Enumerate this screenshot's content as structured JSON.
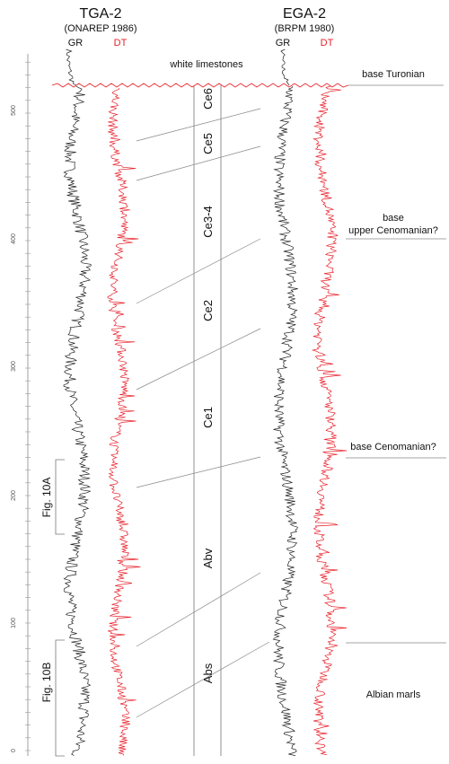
{
  "wells": [
    {
      "name": "TGA-2",
      "source": "(ONAREP 1986)",
      "gr_label": "GR",
      "dt_label": "DT"
    },
    {
      "name": "EGA-2",
      "source": "(BRPM 1980)",
      "gr_label": "GR",
      "dt_label": "DT"
    }
  ],
  "depth_ticks": [
    "0",
    "100",
    "200",
    "300",
    "400",
    "500"
  ],
  "units": [
    "Ce6",
    "Ce5",
    "Ce3-4",
    "Ce2",
    "Ce1",
    "Abv",
    "Abs"
  ],
  "annotations": {
    "white_limestones": "white limestones",
    "base_turonian": "base Turonian",
    "base_upper_cenomanian_1": "base",
    "base_upper_cenomanian_2": "upper Cenomanian?",
    "base_cenomanian": "base Cenomanian?",
    "albian_marls": "Albian marls"
  },
  "figure_refs": [
    "Fig. 10A",
    "Fig. 10B"
  ],
  "colors": {
    "gr": "#222222",
    "dt": "#e8202a",
    "guide": "#777777"
  }
}
